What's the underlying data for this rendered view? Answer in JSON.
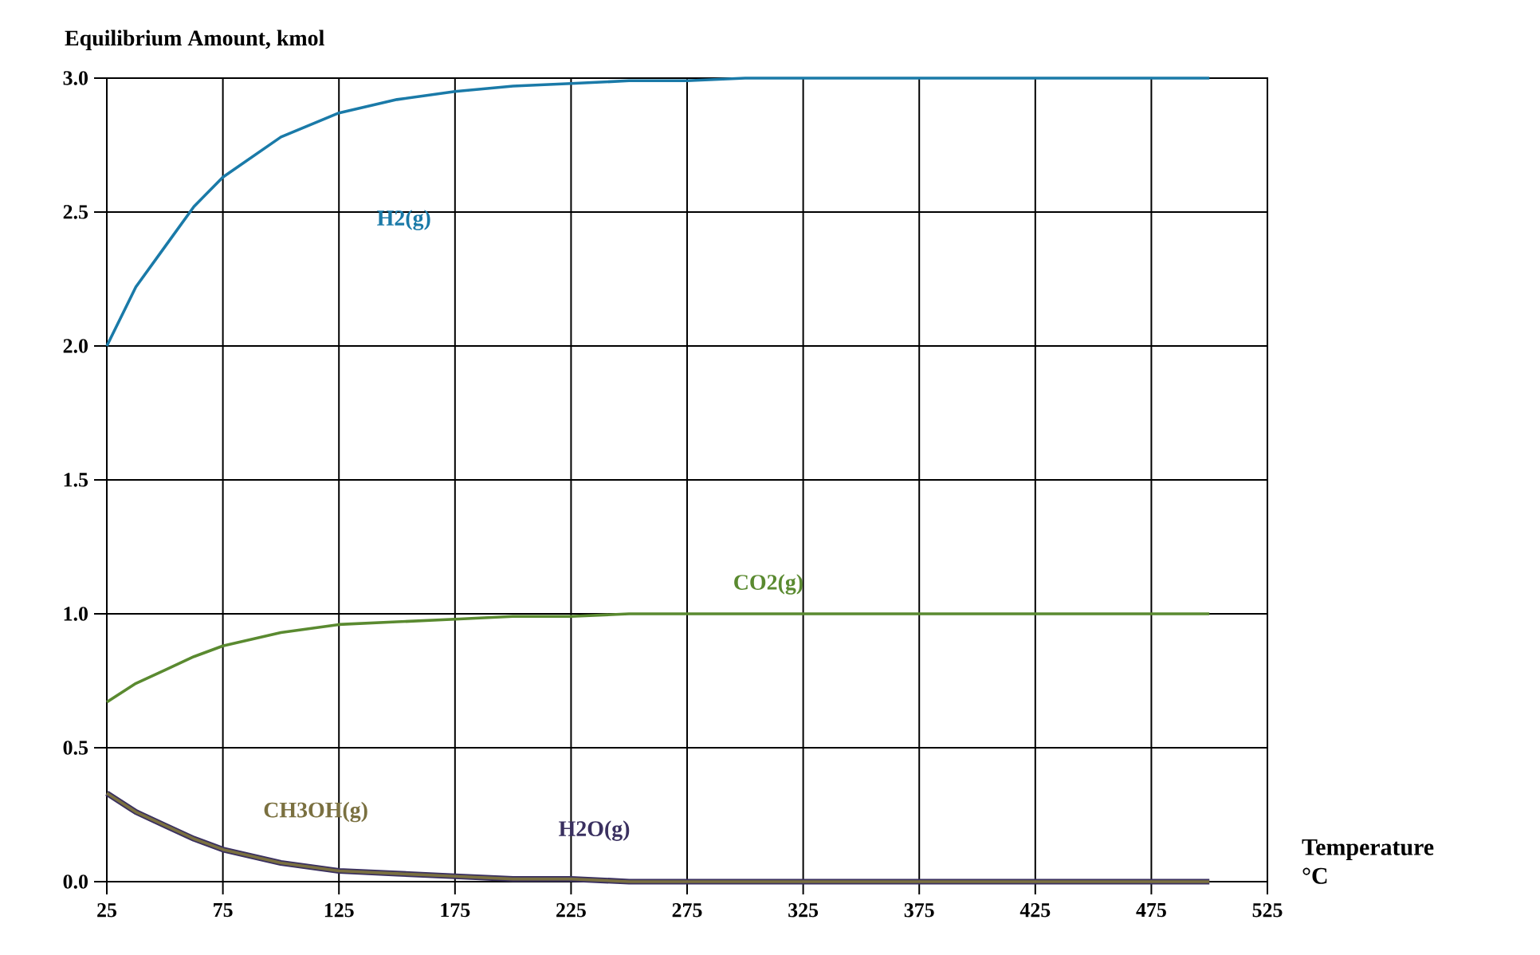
{
  "chart_data": {
    "type": "line",
    "xlabel": "Temperature\n°C",
    "ylabel": "Equilibrium Amount, kmol",
    "x": [
      25,
      37.5,
      50,
      62.5,
      75,
      100,
      125,
      150,
      175,
      200,
      225,
      250,
      275,
      300,
      350,
      400,
      450,
      500
    ],
    "series": [
      {
        "name": "H2(g)",
        "color": "#1a7aa8",
        "values": [
          2.0,
          2.22,
          2.37,
          2.52,
          2.63,
          2.78,
          2.87,
          2.92,
          2.95,
          2.97,
          2.98,
          2.99,
          2.99,
          3.0,
          3.0,
          3.0,
          3.0,
          3.0
        ]
      },
      {
        "name": "CO2(g)",
        "color": "#5a8a30",
        "values": [
          0.67,
          0.74,
          0.79,
          0.84,
          0.88,
          0.93,
          0.96,
          0.97,
          0.98,
          0.99,
          0.99,
          1.0,
          1.0,
          1.0,
          1.0,
          1.0,
          1.0,
          1.0
        ]
      },
      {
        "name": "H2O(g)",
        "color": "#3a3060",
        "values": [
          0.33,
          0.26,
          0.21,
          0.16,
          0.12,
          0.07,
          0.04,
          0.03,
          0.02,
          0.01,
          0.01,
          0.0,
          0.0,
          0.0,
          0.0,
          0.0,
          0.0,
          0.0
        ]
      },
      {
        "name": "CH3OH(g)",
        "color": "#7a7040",
        "values": [
          0.33,
          0.26,
          0.21,
          0.16,
          0.12,
          0.07,
          0.04,
          0.03,
          0.02,
          0.01,
          0.01,
          0.0,
          0.0,
          0.0,
          0.0,
          0.0,
          0.0,
          0.0
        ]
      }
    ],
    "xlim": [
      25,
      525
    ],
    "xticks": [
      25,
      75,
      125,
      175,
      225,
      275,
      325,
      375,
      425,
      475,
      525
    ],
    "ylim": [
      0,
      3.0
    ],
    "yticks": [
      {
        "value": 0,
        "label": "0.0"
      },
      {
        "value": 0.5,
        "label": "0.5"
      },
      {
        "value": 1,
        "label": "1.0"
      },
      {
        "value": 1.5,
        "label": "1.5"
      },
      {
        "value": 2,
        "label": "2.0"
      },
      {
        "value": 2.5,
        "label": "2.5"
      },
      {
        "value": 3,
        "label": "3.0"
      }
    ],
    "grid": true,
    "legend": false,
    "marker": "none",
    "line_style": "solid"
  }
}
